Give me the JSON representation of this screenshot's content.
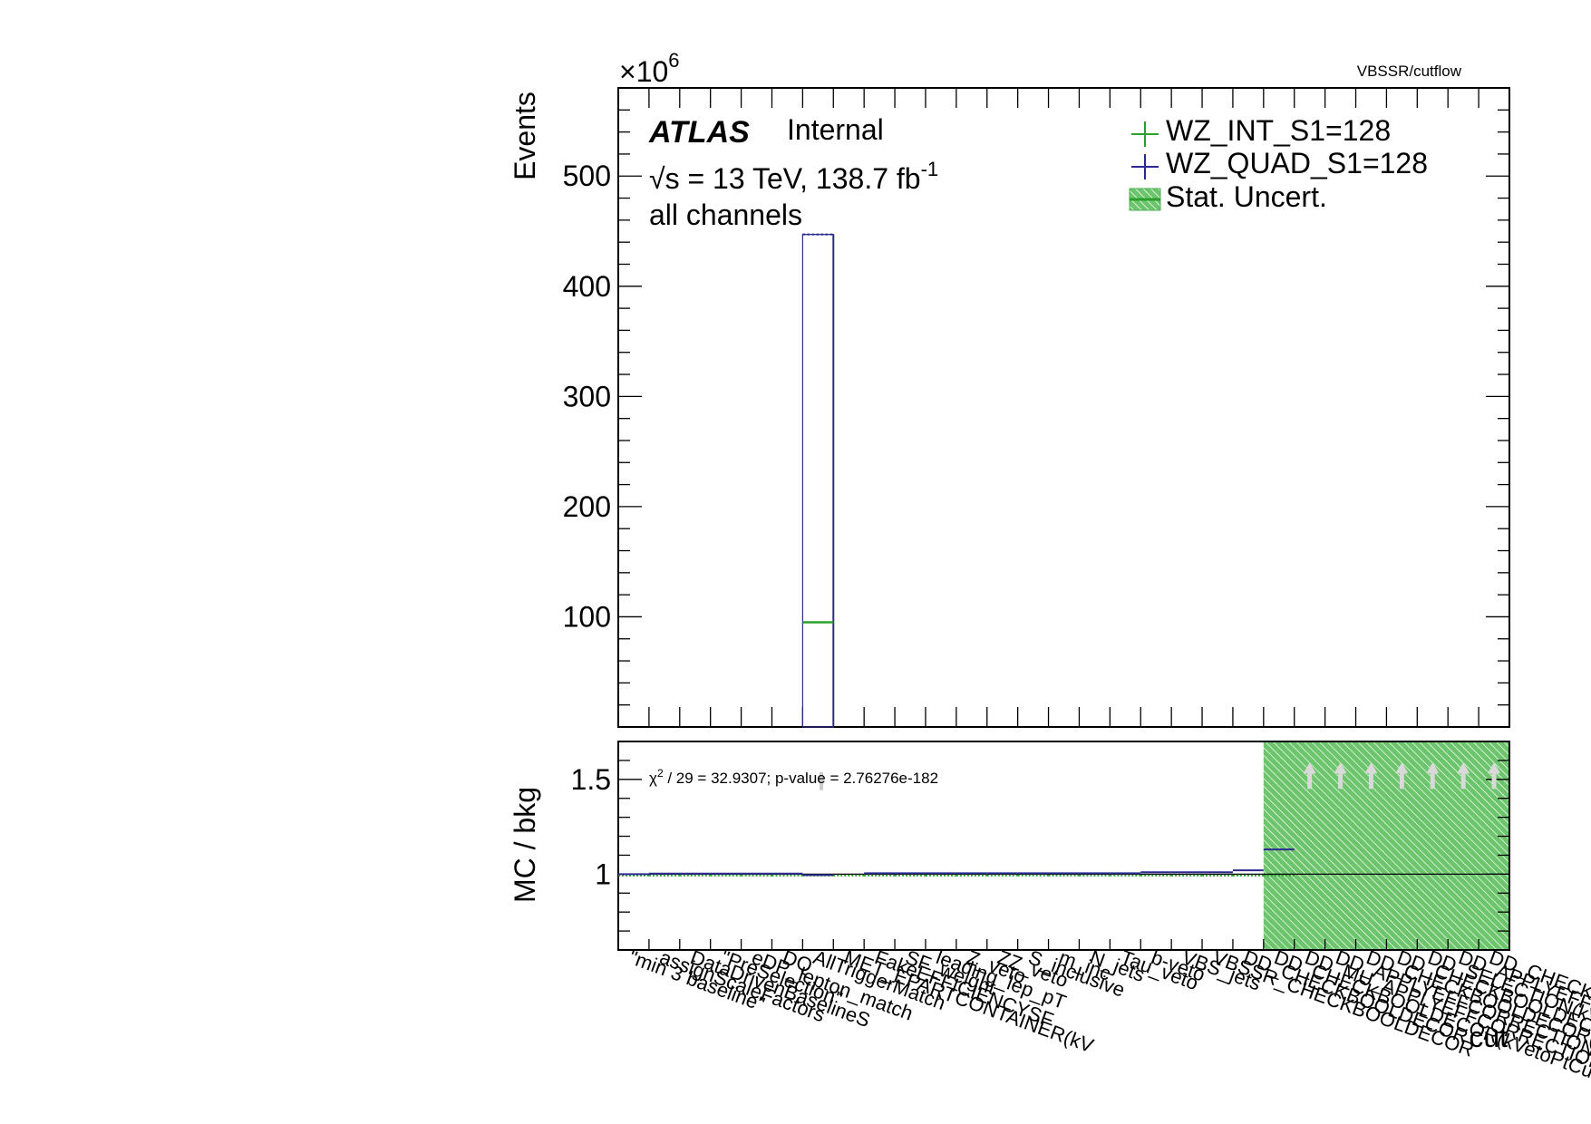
{
  "chart_data": [
    {
      "type": "histogram",
      "panel": "main",
      "corner_label": "VBSSR/cutflow",
      "exponent_label_base": "×10",
      "exponent_label_power": "6",
      "ylabel": "Events",
      "ylim": [
        0,
        580
      ],
      "yticks": [
        100,
        200,
        300,
        400,
        500
      ],
      "ytick_labels": [
        "100",
        "200",
        "300",
        "400",
        "500"
      ],
      "n_bins": 29,
      "atlas_label": "ATLAS",
      "atlas_status": "Internal",
      "energy_prefix": "√s = 13 TeV, 138.7 fb",
      "energy_superscript": "-1",
      "channel_label": "all channels",
      "legend_position": "top-right",
      "legend": [
        {
          "name": "WZ_INT_S1=128",
          "color": "#2ca02c",
          "marker": "cross"
        },
        {
          "name": "WZ_QUAD_S1=128",
          "color": "#2b2b8f",
          "marker": "cross"
        },
        {
          "name": "Stat. Uncert.",
          "color": "#4caf50",
          "marker": "hatched-box"
        }
      ],
      "series": [
        {
          "name": "WZ_INT_S1=128",
          "color": "#2ca02c",
          "bin": 7,
          "value": 95
        },
        {
          "name": "WZ_QUAD_S1=128",
          "color": "#2b2b8f",
          "bin": 7,
          "value": 447
        }
      ]
    },
    {
      "type": "ratio",
      "panel": "ratio",
      "ylabel": "MC / bkg",
      "ylim": [
        0.6,
        1.7
      ],
      "yticks": [
        1.0,
        1.5
      ],
      "ytick_labels": [
        "1",
        "1.5"
      ],
      "xlabel": "cut",
      "reference_line": 1.0,
      "chi2_prefix": "χ",
      "chi2_superscript": "2",
      "chi2_suffix": " / 29 = 32.9307; p-value = 2.76276e-182",
      "uncertainty_band": {
        "from_bin": 22,
        "to_bin": 29,
        "color": "#4caf50",
        "ymin": 0.6,
        "ymax": 1.7
      },
      "overflow_arrow_bins": [
        23,
        24,
        25,
        26,
        27,
        28,
        29
      ],
      "quad_ratio": [
        1.0,
        1.003,
        1.003,
        1.003,
        1.003,
        1.003,
        0.995,
        0.0,
        1.005,
        1.005,
        1.005,
        1.005,
        1.005,
        1.005,
        1.005,
        1.005,
        1.005,
        1.01,
        1.01,
        1.01,
        1.02,
        1.13,
        null,
        null,
        null,
        null,
        null,
        null,
        null
      ],
      "int_ratio": [
        1.0,
        1.0,
        1.0,
        1.0,
        1.0,
        1.0,
        1.0,
        1.0,
        1.0,
        1.0,
        1.0,
        1.0,
        1.0,
        1.0,
        1.0,
        1.0,
        1.0,
        1.0,
        1.0,
        1.0,
        1.0,
        1.0,
        null,
        null,
        null,
        null,
        null,
        null,
        null
      ],
      "categories": [
        "\"min 3 baseline\"",
        "assignScaleFactors",
        "DataDrivenBaselineS",
        "\"PreSelection\"",
        "eDP_lepton_match",
        "DQ",
        "AllTriggerMatch",
        "MET_EPARTCONTAINER(kV",
        "FakeEFFICIENCYSF",
        "SF_weight",
        "leading_lep_pT",
        "Z_veto",
        "ZZ_veto",
        "S_inclusive",
        "m_inc",
        "N_jets",
        "Tau_veto",
        "b-veto",
        "VBS_jets",
        "VBSSR_CHECKBOOLDECOR",
        "DD_CHECKBOOLDECOR",
        "DD_CHECKBOOLDECOR(kVetoPtCutTight)",
        "DD_MU_APPLYEFFCORRECTION",
        "DD_APPLYEFFCORRECTION",
        "DD_CHECKBOOLDECOR(kVetoPtCutTight)",
        "DD_CHECKBOOLDECOR(kS",
        "DD_SELECTION(kVetoPtCutTight)",
        "DD_APPLYEFFCORRECTION(kS",
        "DD_CHECKBOOLDECOR(kSelectedJets"
      ]
    }
  ]
}
